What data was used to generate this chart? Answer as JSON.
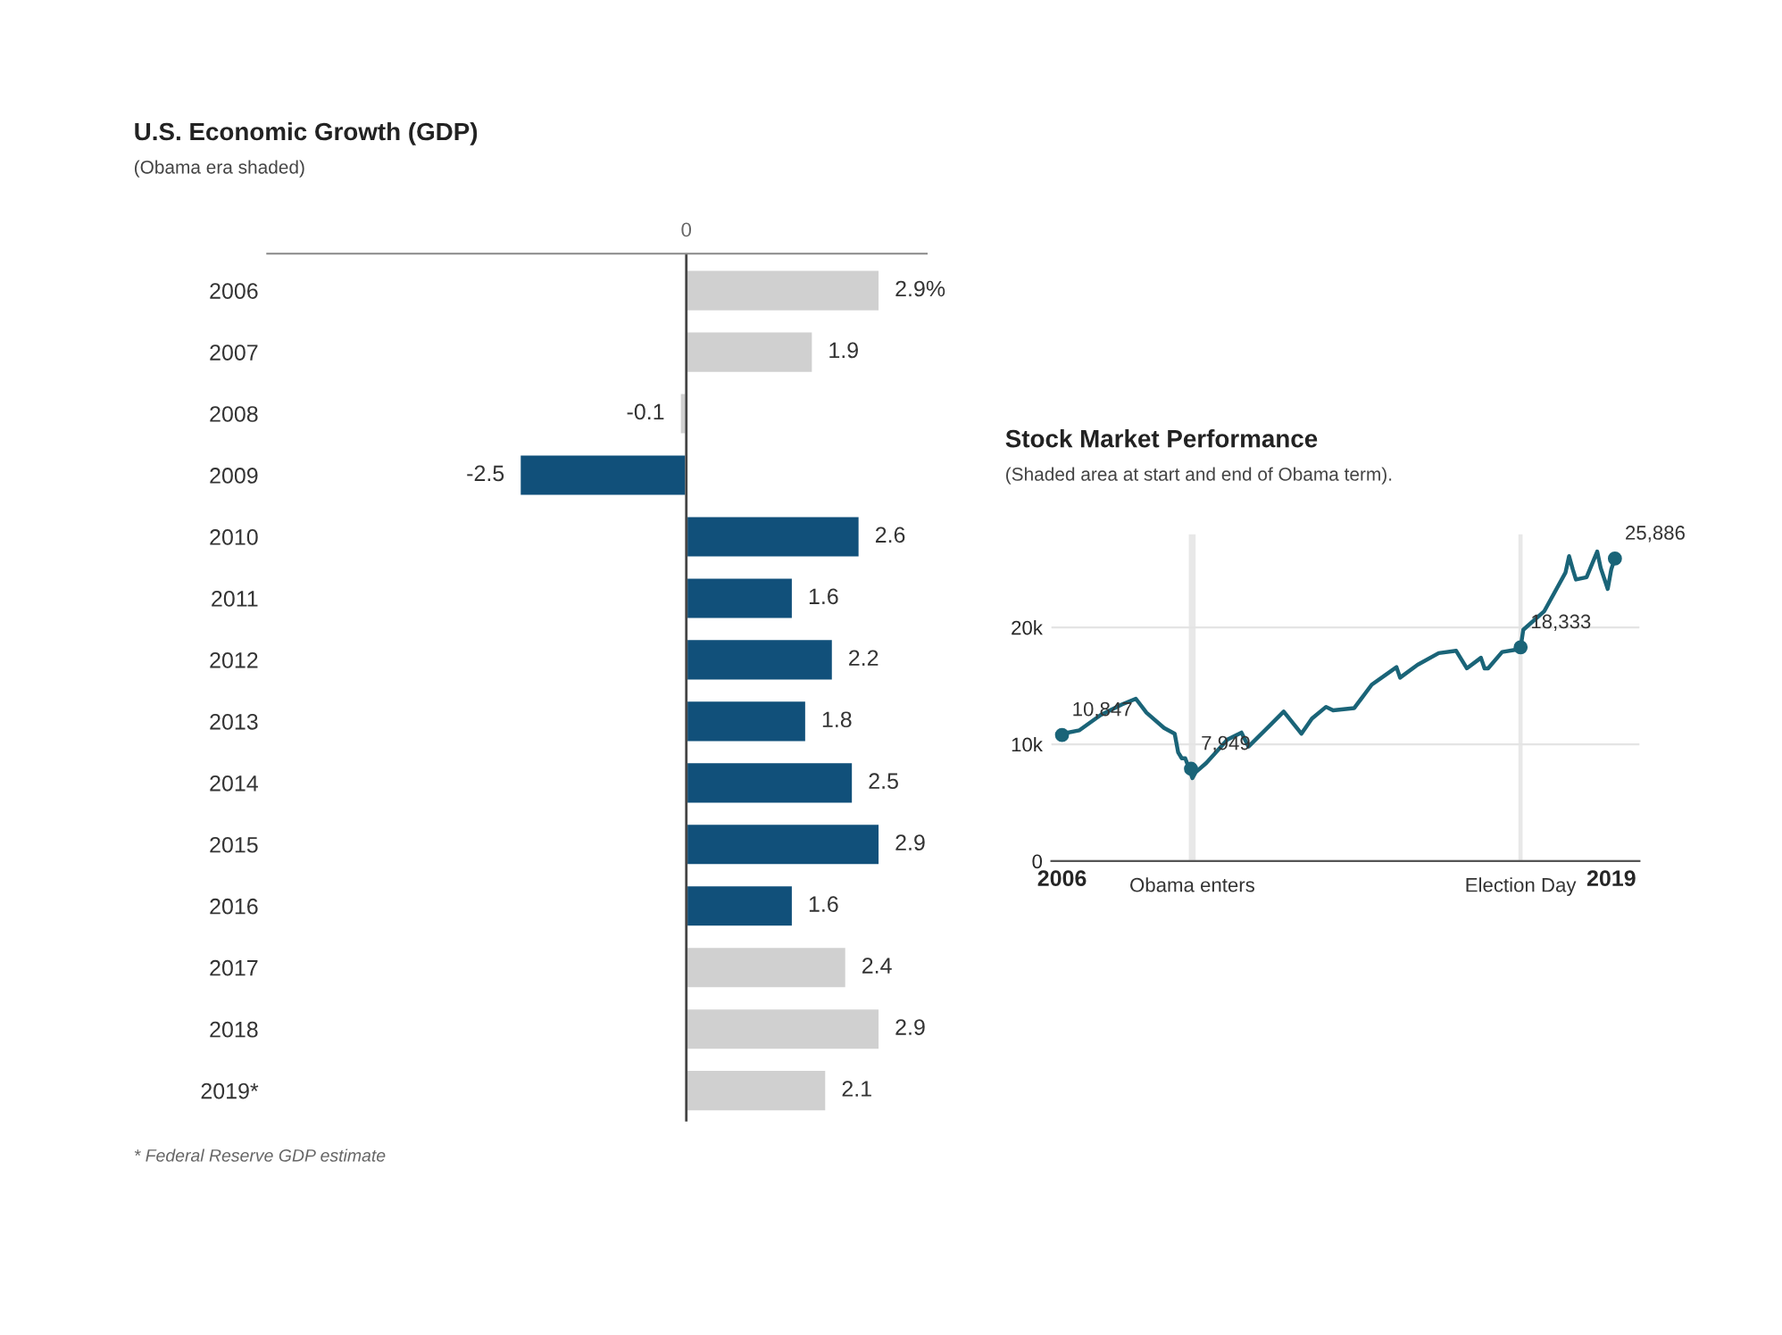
{
  "chart_data": [
    {
      "type": "bar",
      "orientation": "horizontal",
      "title": "U.S. Economic Growth (GDP)",
      "subtitle": "(Obama era shaded)",
      "categories": [
        "2006",
        "2007",
        "2008",
        "2009",
        "2010",
        "2011",
        "2012",
        "2013",
        "2014",
        "2015",
        "2016",
        "2017",
        "2018",
        "2019*"
      ],
      "values": [
        2.9,
        1.9,
        -0.1,
        -2.5,
        2.6,
        1.6,
        2.2,
        1.8,
        2.5,
        2.9,
        1.6,
        2.4,
        2.9,
        2.1
      ],
      "colors": [
        "#d0d0d0",
        "#d0d0d0",
        "#d0d0d0",
        "#11507a",
        "#11507a",
        "#11507a",
        "#11507a",
        "#11507a",
        "#11507a",
        "#11507a",
        "#11507a",
        "#d0d0d0",
        "#d0d0d0",
        "#d0d0d0"
      ],
      "value_labels": [
        "2.9%",
        "1.9",
        "-0.1",
        "-2.5",
        "2.6",
        "1.6",
        "2.2",
        "1.8",
        "2.5",
        "2.9",
        "1.6",
        "2.4",
        "2.9",
        "2.1"
      ],
      "annotations": [
        "0",
        "* Federal Reserve GDP estimate"
      ]
    },
    {
      "type": "line",
      "title": "Stock Market Performance",
      "subtitle": "(Shaded area at start and end of Obama term).",
      "xlim": [
        "2005-10",
        "2019-09"
      ],
      "ylim": [
        0,
        28000
      ],
      "xticks": [
        {
          "value": "2006-01",
          "label": "2006"
        },
        {
          "value": "2019-01",
          "label": "2019"
        }
      ],
      "yticks": [
        0,
        {
          "value": 10000,
          "label": "10k"
        },
        {
          "value": 20000,
          "label": "20k"
        }
      ],
      "grid": "y",
      "series": [
        {
          "type": "line",
          "color": "#1a6478",
          "x": [
            "2006-01",
            "2006-06",
            "2006-12",
            "2007-06",
            "2007-10",
            "2008-01",
            "2008-06",
            "2008-09",
            "2008-10",
            "2008-11",
            "2008-12",
            "2009-01",
            "2009-02",
            "2009-03",
            "2009-06",
            "2009-12",
            "2010-04",
            "2010-06",
            "2010-12",
            "2011-04",
            "2011-09",
            "2011-12",
            "2012-04",
            "2012-06",
            "2012-12",
            "2013-05",
            "2013-12",
            "2014-01",
            "2014-06",
            "2014-12",
            "2015-05",
            "2015-08",
            "2015-12",
            "2016-01",
            "2016-02",
            "2016-06",
            "2016-10",
            "2016-11-08",
            "2016-12",
            "2017-06",
            "2017-12",
            "2018-01",
            "2018-02",
            "2018-03",
            "2018-06",
            "2018-09",
            "2018-10",
            "2018-12",
            "2019-01",
            "2019-02"
          ],
          "values": [
            10900,
            11200,
            12500,
            13400,
            13900,
            12700,
            11400,
            10900,
            9300,
            8800,
            8800,
            8000,
            7100,
            7600,
            8400,
            10400,
            11000,
            9800,
            11600,
            12800,
            10900,
            12200,
            13200,
            12900,
            13100,
            15100,
            16600,
            15700,
            16800,
            17800,
            18000,
            16500,
            17400,
            16500,
            16500,
            17900,
            18100,
            18300,
            19800,
            21400,
            24700,
            26100,
            25000,
            24100,
            24300,
            26500,
            25100,
            23300,
            25000,
            25900
          ]
        },
        {
          "type": "scatter",
          "color": "#1a6478",
          "x": [
            "2006-01",
            "2009-01-20",
            "2016-11-08",
            "2019-02"
          ],
          "values": [
            10800,
            7900,
            18300,
            25900
          ]
        }
      ],
      "bands": [
        {
          "axis": "x",
          "from": "2009-01-01",
          "to": "2009-03-01",
          "label": "Obama enters",
          "color": "#e8e8e8"
        },
        {
          "axis": "x",
          "from": "2016-10-20",
          "to": "2016-11-25",
          "label": "Election Day",
          "color": "#e8e8e8"
        }
      ],
      "annotations": [
        {
          "text": "10,847",
          "x": "2006-01",
          "y": 10800
        },
        {
          "text": "7,949",
          "x": "2009-01-20",
          "y": 7900
        },
        {
          "text": "18,333",
          "x": "2016-11-08",
          "y": 18300
        },
        {
          "text": "25,886",
          "x": "2019-02",
          "y": 25900
        }
      ]
    }
  ]
}
